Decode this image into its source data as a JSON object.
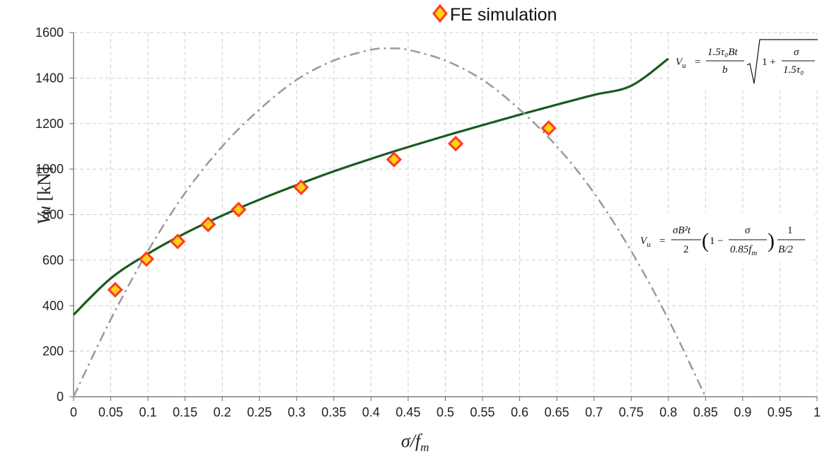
{
  "chart_data": {
    "type": "scatter",
    "xlabel": "σ/f",
    "xlabel_sub": "m",
    "ylabel": "Vu",
    "ylabel_unit": "[kN]",
    "xlim": [
      0,
      1
    ],
    "ylim": [
      0,
      1600
    ],
    "xticks": [
      "0",
      "0.05",
      "0.1",
      "0.15",
      "0.2",
      "0.25",
      "0.3",
      "0.35",
      "0.4",
      "0.45",
      "0.5",
      "0.55",
      "0.6",
      "0.65",
      "0.7",
      "0.75",
      "0.8",
      "0.85",
      "0.9",
      "0.95",
      "1"
    ],
    "yticks": [
      "0",
      "200",
      "400",
      "600",
      "800",
      "1000",
      "1200",
      "1400",
      "1600"
    ],
    "grid": true,
    "legend_position": "top-center",
    "series": [
      {
        "name": "FE simulation",
        "kind": "markers",
        "marker": "diamond",
        "color": "#ff3b1a",
        "fill": "#ffd21a",
        "x": [
          0.056,
          0.098,
          0.14,
          0.181,
          0.222,
          0.306,
          0.431,
          0.514,
          0.639
        ],
        "y": [
          470,
          605,
          682,
          757,
          822,
          920,
          1042,
          1112,
          1180
        ]
      },
      {
        "kind": "line",
        "color": "#1a5a1e",
        "x": [
          0,
          0.05,
          0.1,
          0.15,
          0.2,
          0.25,
          0.3,
          0.35,
          0.4,
          0.45,
          0.5,
          0.55,
          0.6,
          0.65,
          0.7,
          0.75,
          0.8
        ],
        "y": [
          360,
          520,
          628,
          718,
          796,
          866,
          930,
          990,
          1045,
          1097,
          1146,
          1193,
          1239,
          1283,
          1326,
          1366,
          1485
        ]
      },
      {
        "kind": "line",
        "style": "dash-dot",
        "color": "#999999",
        "x": [
          0,
          0.05,
          0.1,
          0.15,
          0.2,
          0.25,
          0.3,
          0.35,
          0.4,
          0.425,
          0.45,
          0.5,
          0.55,
          0.6,
          0.65,
          0.7,
          0.75,
          0.8,
          0.85
        ],
        "y": [
          0,
          340,
          640,
          895,
          1100,
          1262,
          1392,
          1477,
          1524,
          1530,
          1524,
          1477,
          1392,
          1262,
          1100,
          895,
          640,
          340,
          0
        ]
      }
    ],
    "annotations": [
      {
        "name": "formula-vu-shear",
        "lhs": "V",
        "lhs_sub": "u",
        "eq": "=",
        "num": "1.5τ₀Bt",
        "den": "b",
        "root_num": "σ",
        "root_den": "1.5τ₀",
        "root_pre": "1 +"
      },
      {
        "name": "formula-vu-flexure",
        "lhs": "V",
        "lhs_sub": "u",
        "eq": "=",
        "num": "σB²t",
        "den": "2",
        "paren_pre": "1 −",
        "paren_num": "σ",
        "paren_den": "0.85f",
        "paren_den_sub": "m",
        "frac2_num": "1",
        "frac2_den": "B/2"
      }
    ]
  }
}
